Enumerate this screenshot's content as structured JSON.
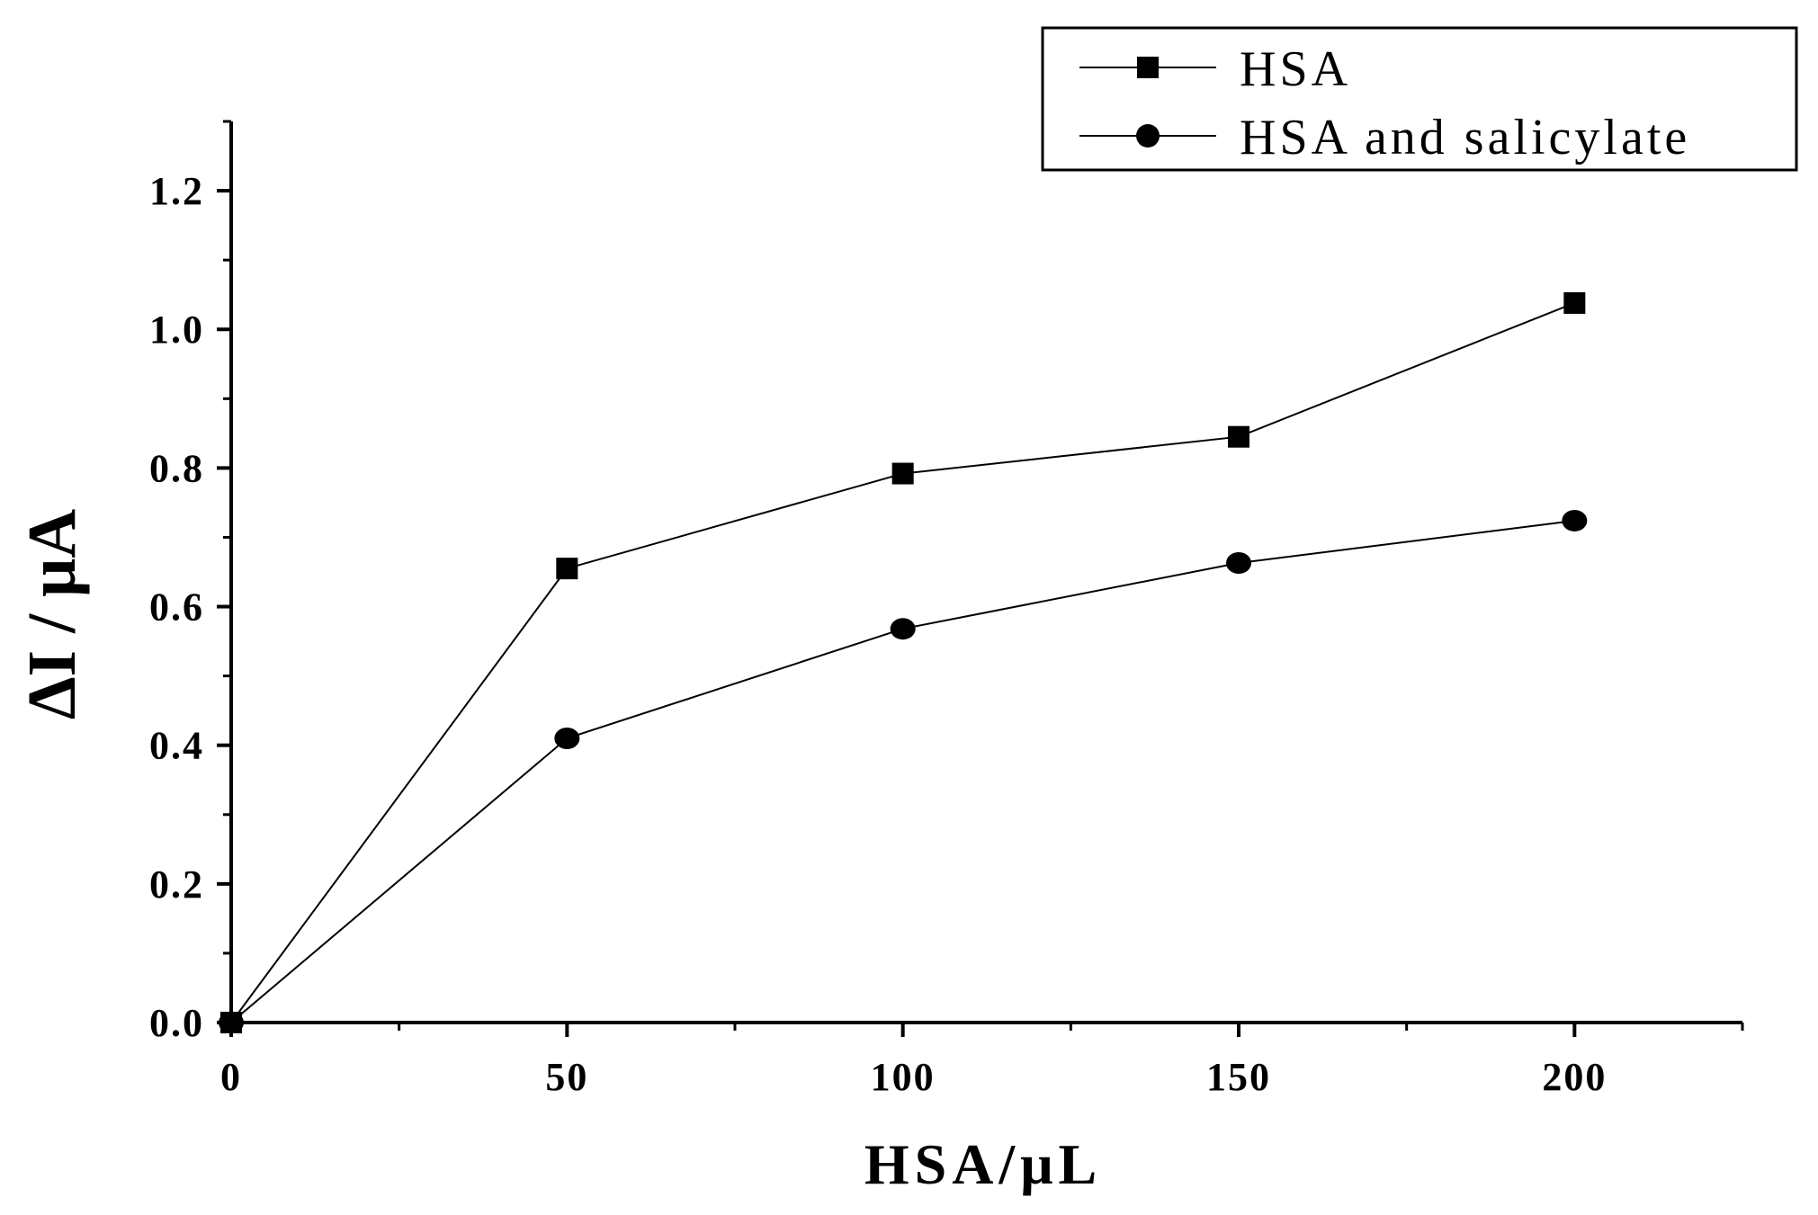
{
  "chart_data": {
    "type": "line",
    "xlabel": "HSA/μL",
    "ylabel": "ΔI / μA",
    "xlim": [
      0,
      225
    ],
    "ylim": [
      0,
      1.3
    ],
    "x_ticks": [
      0,
      50,
      100,
      150,
      200
    ],
    "x_tick_labels": [
      "0",
      "50",
      "100",
      "150",
      "200"
    ],
    "y_ticks": [
      0.0,
      0.2,
      0.4,
      0.6,
      0.8,
      1.0,
      1.2
    ],
    "y_tick_labels": [
      "0.0",
      "0.2",
      "0.4",
      "0.6",
      "0.8",
      "1.0",
      "1.2"
    ],
    "grid": false,
    "legend_position": "top-right",
    "series": [
      {
        "name": "HSA",
        "marker": "square",
        "x": [
          0,
          50,
          100,
          150,
          200
        ],
        "y": [
          0.0,
          0.655,
          0.792,
          0.845,
          1.038
        ]
      },
      {
        "name": "HSA and salicylate",
        "marker": "circle",
        "x": [
          0,
          50,
          100,
          150,
          200
        ],
        "y": [
          0.0,
          0.41,
          0.568,
          0.663,
          0.724
        ]
      }
    ]
  }
}
